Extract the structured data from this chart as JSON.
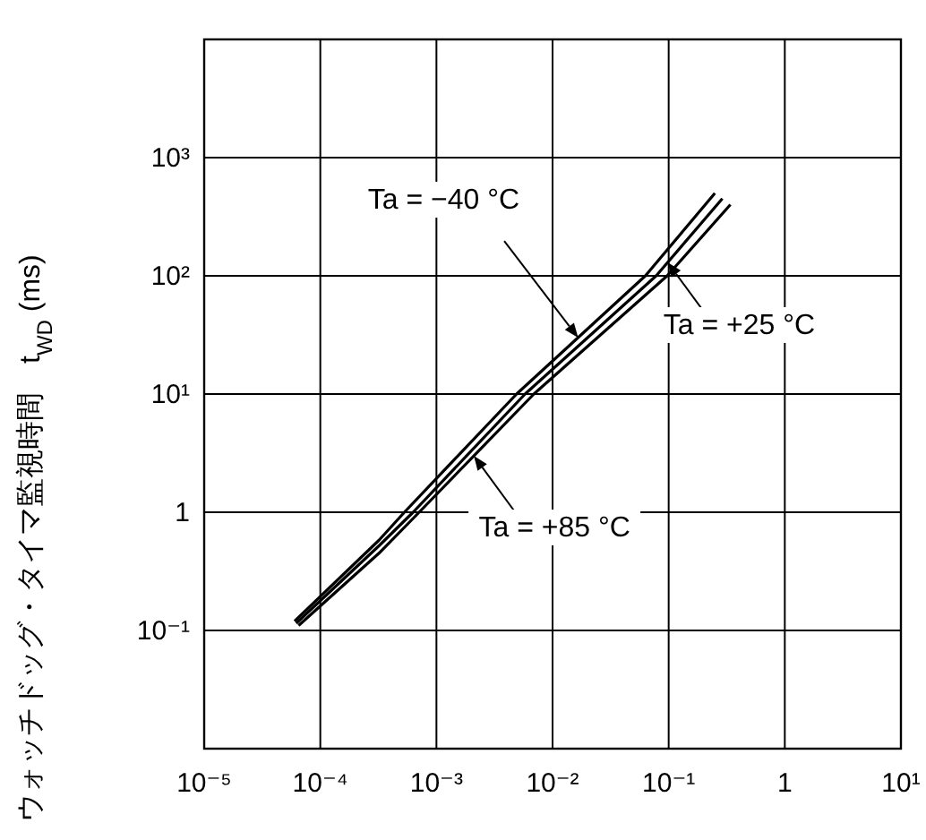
{
  "chart_data": {
    "type": "line",
    "ylabel": "ウォッチドッグ・タイマ監視時間　t$_{WD}$ (ms)",
    "log": "xy",
    "grid": true,
    "marker": "none",
    "line_style": "solid",
    "xlim": [
      1e-05,
      10
    ],
    "ylim": [
      0.01,
      10000
    ],
    "xticks": [
      {
        "value": 1e-05,
        "label": "10⁻⁵"
      },
      {
        "value": 0.0001,
        "label": "10⁻⁴"
      },
      {
        "value": 0.001,
        "label": "10⁻³"
      },
      {
        "value": 0.01,
        "label": "10⁻²"
      },
      {
        "value": 0.1,
        "label": "10⁻¹"
      },
      1,
      {
        "value": 10,
        "label": "10¹"
      }
    ],
    "yticks": [
      {
        "value": 0.1,
        "label": "10⁻¹"
      },
      1,
      {
        "value": 10,
        "label": "10¹"
      },
      {
        "value": 100,
        "label": "10²"
      },
      {
        "value": 1000,
        "label": "10³"
      }
    ],
    "series": [
      {
        "color": "#000000",
        "x": [
          6e-05,
          0.00032,
          0.00053,
          0.0049,
          0.063,
          0.25
        ],
        "values": [
          0.12,
          0.58,
          1,
          10,
          100,
          500
        ]
      },
      {
        "color": "#000000",
        "x": [
          6.2e-05,
          0.00032,
          0.00063,
          0.0058,
          0.078,
          0.29
        ],
        "values": [
          0.115,
          0.52,
          1,
          10,
          100,
          450
        ]
      },
      {
        "color": "#000000",
        "x": [
          6.5e-05,
          0.00032,
          0.00071,
          0.0069,
          0.097,
          0.34
        ],
        "values": [
          0.11,
          0.45,
          1,
          10,
          100,
          400
        ]
      }
    ],
    "annotations": [
      {
        "text": "Ta = −40 °C",
        "x": 0.0166,
        "y": 30
      },
      {
        "text": "Ta = +25 °C",
        "x": 0.098,
        "y": 130
      },
      {
        "text": "Ta = +85 °C",
        "x": 0.0021,
        "y": 3
      }
    ]
  }
}
